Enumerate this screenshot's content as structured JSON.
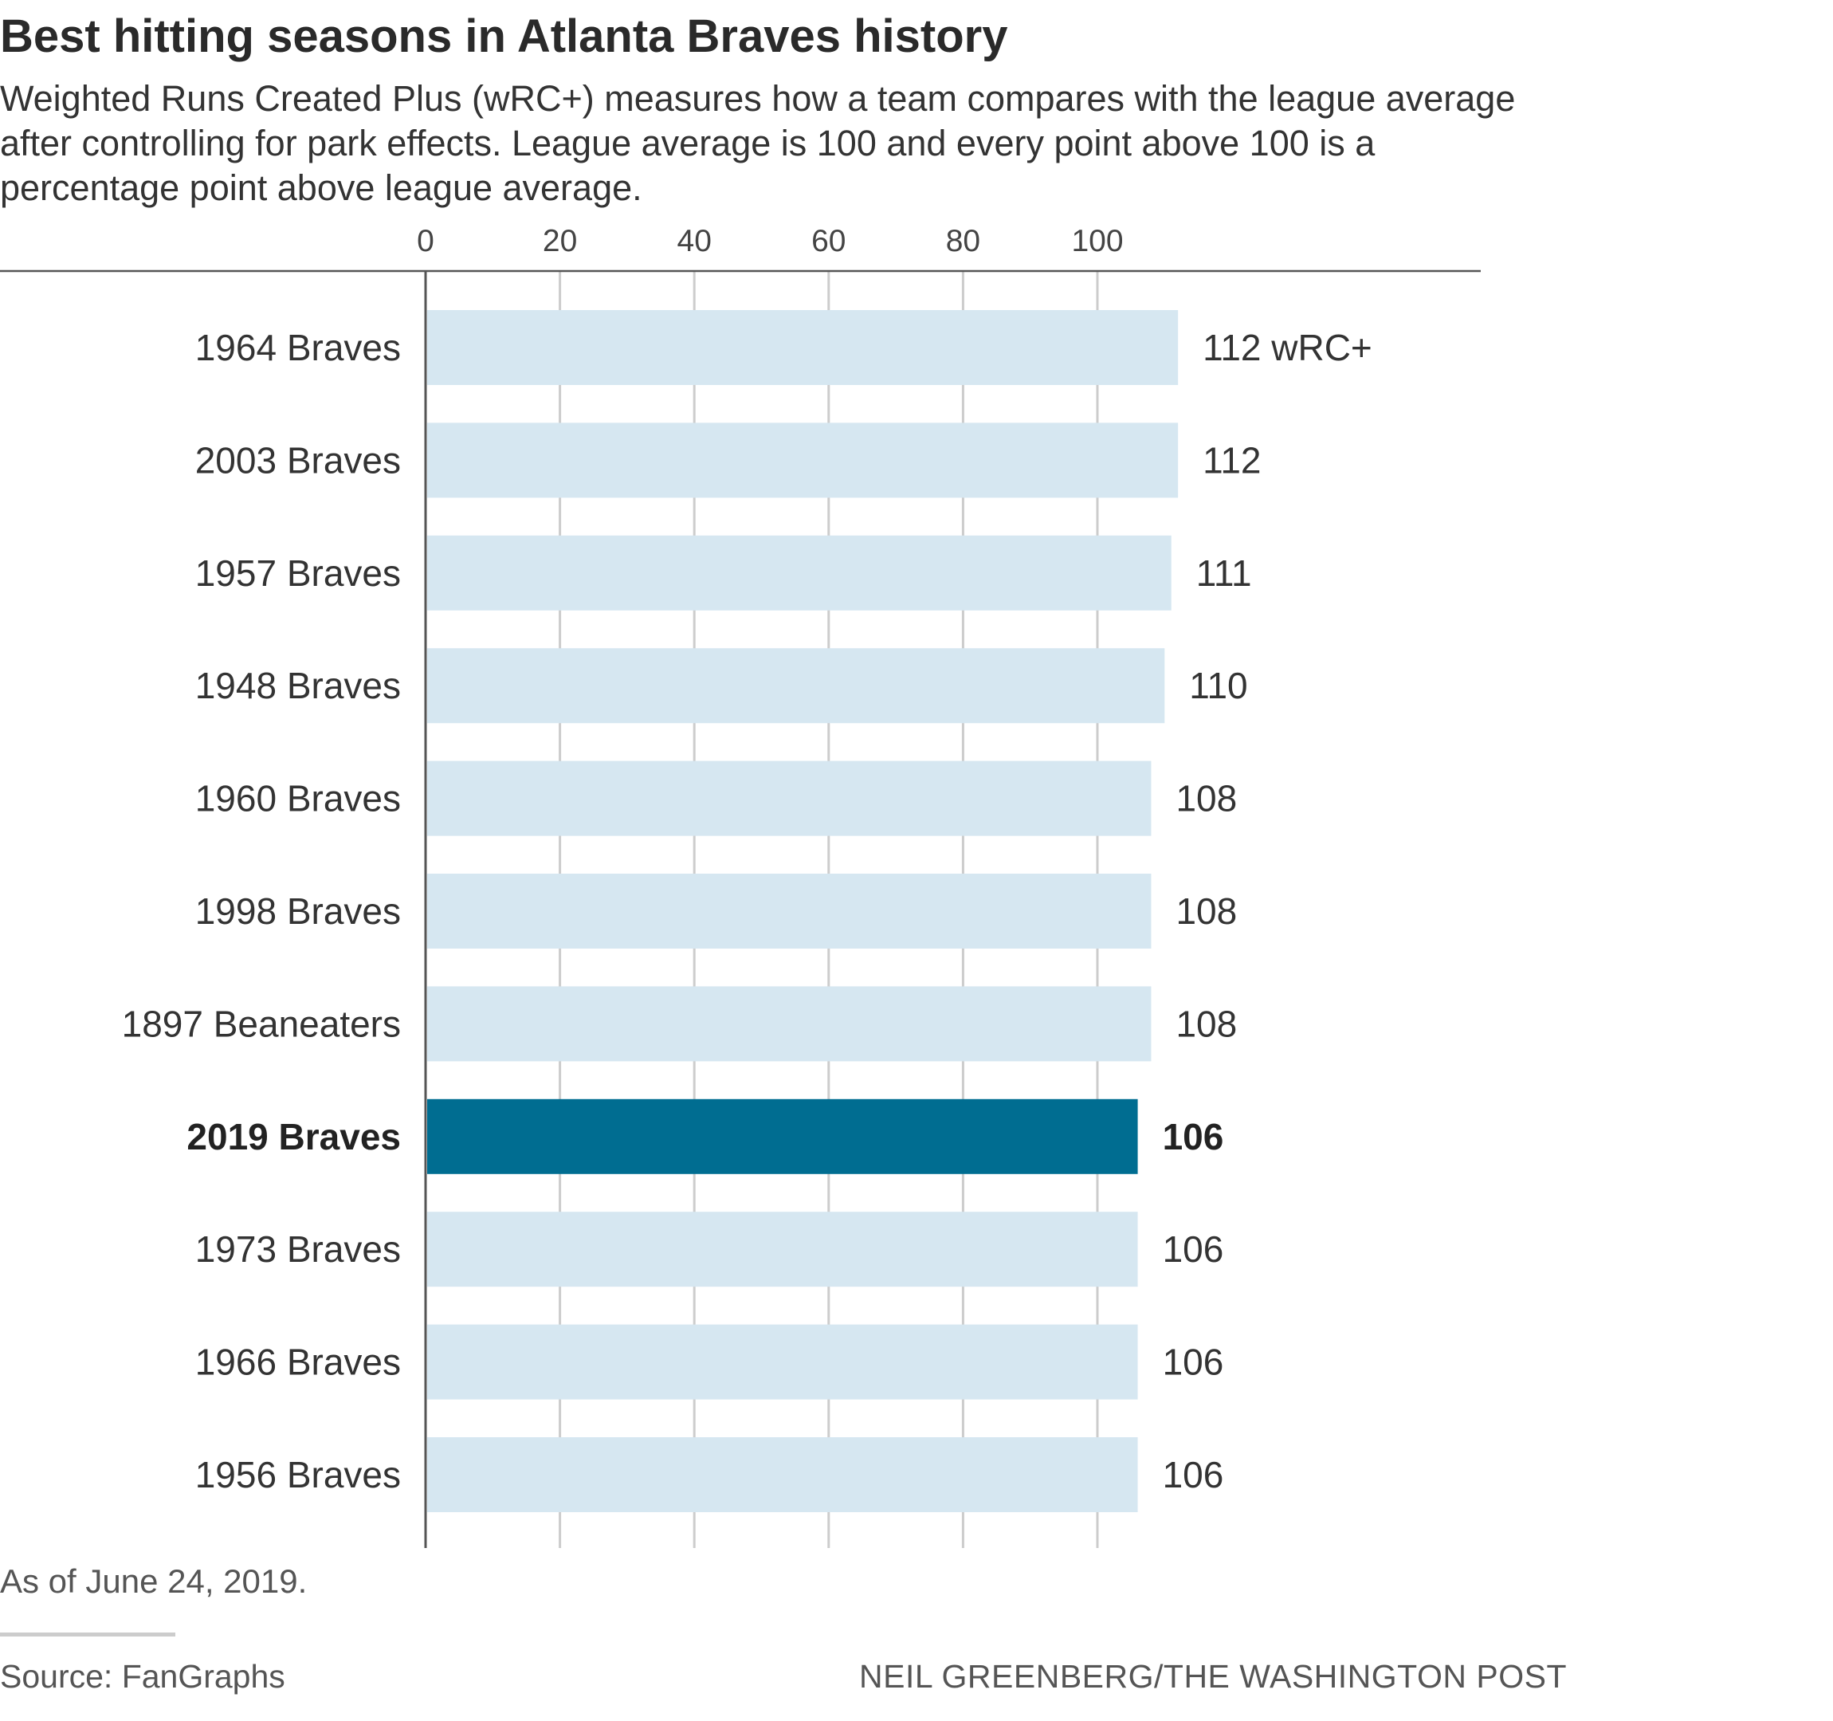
{
  "chart_data": {
    "type": "bar",
    "orientation": "horizontal",
    "title": "Best hitting seasons in Atlanta Braves history",
    "subtitle": "Weighted Runs Created Plus (wRC+) measures how a team compares with the league average after controlling for park effects. League average is 100 and every point above 100 is a percentage point above league average.",
    "categories": [
      "1964 Braves",
      "2003 Braves",
      "1957 Braves",
      "1948 Braves",
      "1960 Braves",
      "1998 Braves",
      "1897 Beaneaters",
      "2019 Braves",
      "1973 Braves",
      "1966 Braves",
      "1956 Braves"
    ],
    "values": [
      112,
      112,
      111,
      110,
      108,
      108,
      108,
      106,
      106,
      106,
      106
    ],
    "value_labels": [
      "112 wRC+",
      "112",
      "111",
      "110",
      "108",
      "108",
      "108",
      "106",
      "106",
      "106",
      "106"
    ],
    "highlight_category": "2019 Braves",
    "xticks": [
      0,
      20,
      40,
      60,
      80,
      100
    ],
    "xlim": [
      0,
      158
    ],
    "axis_position": "top",
    "grid": true,
    "colors": {
      "bar": "#d6e7f1",
      "highlight": "#006d91",
      "grid": "#cccccc",
      "axis": "#555555"
    }
  },
  "footer": {
    "note": "As of June 24, 2019.",
    "source": "Source: FanGraphs",
    "credit": "NEIL GREENBERG/THE WASHINGTON POST"
  }
}
